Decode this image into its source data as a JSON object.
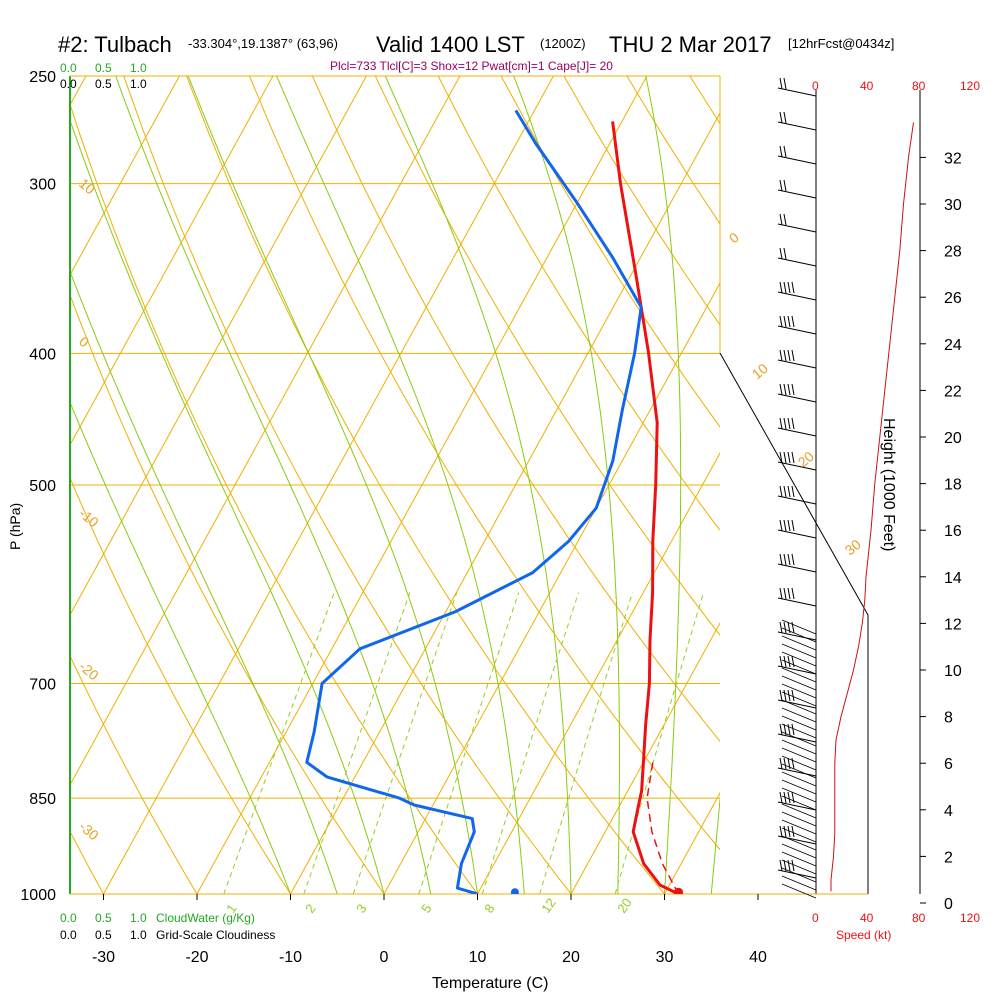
{
  "title": {
    "station": "#2: Tulbach",
    "coords": "-33.304°,19.1387° (63,96)",
    "valid": "Valid 1400 LST",
    "utc": "(1200Z)",
    "date": "THU 2 Mar 2017",
    "forecast": "[12hrFcst@0434z]"
  },
  "params_line": "Plcl=733 Tlcl[C]=3 Shox=12 Pwat[cm]=1 Cape[J]= 20",
  "cloud_scale": {
    "ticks": [
      "0.0",
      "0.5",
      "1.0"
    ],
    "cloudwater_label": "CloudWater (g/Kg)",
    "cloudiness_label": "Grid-Scale Cloudiness"
  },
  "speed_scale": {
    "ticks": [
      "0",
      "40",
      "80",
      "120"
    ],
    "label": "Speed (kt)"
  },
  "colors": {
    "temperature": "#ee1111",
    "dewpoint": "#1166ee",
    "isotherm": "#f0b000",
    "dry_adiabat": "#f0b000",
    "moist_adiabat": "#88cc11",
    "mixing_ratio": "#99cc22",
    "cloud_water": "#22aa22",
    "wind_speed": "#cc1111"
  },
  "chart_data": {
    "type": "line",
    "subtype": "skew-T log-P sounding",
    "xlabel": "Temperature (C)",
    "ylabel": "P (hPa)",
    "y2label": "Height (1000 Feet)",
    "x_ticks": [
      -30,
      -20,
      -10,
      0,
      10,
      20,
      30,
      40
    ],
    "pressure_ticks": [
      250,
      300,
      400,
      500,
      700,
      850,
      1000
    ],
    "height_ticks": [
      0,
      2,
      4,
      6,
      8,
      10,
      12,
      14,
      16,
      18,
      20,
      22,
      24,
      26,
      28,
      30,
      32
    ],
    "xlim": [
      -35,
      36
    ],
    "ylim_hpa": [
      1000,
      250
    ],
    "dry_adiabat_labels": [
      "10",
      "0",
      "-10",
      "-20",
      "-30",
      "0",
      "10",
      "20",
      "30"
    ],
    "mixing_ratio_labels": [
      "1",
      "2",
      "3",
      "5",
      "8",
      "12",
      "20"
    ],
    "series": [
      {
        "name": "temperature",
        "pressure": [
          1000,
          985,
          950,
          900,
          860,
          840,
          800,
          750,
          700,
          650,
          600,
          550,
          500,
          450,
          400,
          350,
          300,
          270
        ],
        "values": [
          31.5,
          29,
          26,
          23,
          22,
          21.5,
          20,
          18,
          16,
          13.5,
          11,
          8,
          5,
          1.5,
          -3.5,
          -9.5,
          -16.5,
          -21
        ]
      },
      {
        "name": "dewpoint",
        "pressure": [
          1000,
          990,
          950,
          900,
          880,
          860,
          850,
          820,
          800,
          760,
          700,
          660,
          620,
          580,
          550,
          520,
          480,
          440,
          400,
          370,
          340,
          310,
          280,
          265
        ],
        "values": [
          10,
          7.5,
          6.5,
          6,
          5,
          -2,
          -4,
          -13,
          -16,
          -17,
          -19,
          -17,
          -9,
          -3,
          -1,
          0,
          -1,
          -3,
          -5,
          -7,
          -13,
          -20,
          -28,
          -32
        ]
      },
      {
        "name": "parcel",
        "pressure": [
          1000,
          950,
          900,
          850,
          800
        ],
        "values": [
          31.5,
          28,
          25,
          22.5,
          21
        ]
      }
    ],
    "surface_dewpoint_marker": {
      "pressure": 997,
      "value": 14
    },
    "surface_temp_marker": {
      "pressure": 997,
      "value": 31.5
    },
    "wind_speed_profile": {
      "height_kft": [
        0.5,
        1,
        2,
        3,
        4,
        5,
        6,
        7,
        8,
        9,
        10,
        11,
        12,
        13,
        14,
        16,
        18,
        20,
        22,
        24,
        26,
        28,
        30,
        32,
        33.5
      ],
      "speed_kt": [
        12,
        12,
        14,
        15,
        15,
        15,
        15,
        16,
        20,
        25,
        30,
        34,
        37,
        39,
        40,
        44,
        47,
        51,
        55,
        59,
        63,
        67,
        70,
        74,
        78
      ]
    }
  }
}
